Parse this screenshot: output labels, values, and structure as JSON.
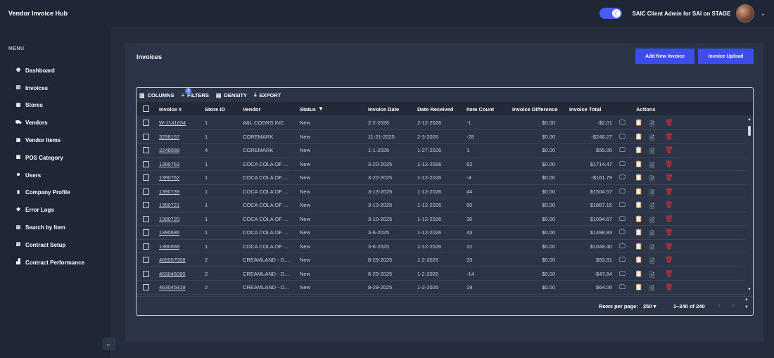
{
  "app": {
    "title": "Vendor Invoice Hub"
  },
  "user": {
    "label": "SAIC Client Admin for SAI on STAGE"
  },
  "sidebar": {
    "menu_label": "MENU",
    "items": [
      {
        "label": "Dashboard",
        "icon": "dashboard-icon"
      },
      {
        "label": "Invoices",
        "icon": "invoices-icon"
      },
      {
        "label": "Stores",
        "icon": "stores-icon"
      },
      {
        "label": "Vendors",
        "icon": "vendors-icon"
      },
      {
        "label": "Vendor Items",
        "icon": "vendor-items-icon"
      },
      {
        "label": "POS Category",
        "icon": "pos-category-icon"
      },
      {
        "label": "Users",
        "icon": "users-icon"
      },
      {
        "label": "Company Profile",
        "icon": "company-profile-icon"
      },
      {
        "label": "Error Logs",
        "icon": "error-logs-icon"
      },
      {
        "label": "Search by Item",
        "icon": "search-by-item-icon"
      },
      {
        "label": "Contract Setup",
        "icon": "contract-setup-icon"
      },
      {
        "label": "Contract Performance",
        "icon": "contract-performance-icon"
      }
    ]
  },
  "page": {
    "title": "Invoices",
    "add_button": "Add New Invoice",
    "upload_button": "Invoice Upload"
  },
  "toolbar": {
    "columns": "COLUMNS",
    "filters": "FILTERS",
    "filters_badge": "1",
    "density": "DENSITY",
    "export": "EXPORT"
  },
  "table": {
    "headers": {
      "invoice": "Invoice #",
      "store": "Store ID",
      "vendor": "Vendor",
      "status": "Status",
      "invoice_date": "Invoice Date",
      "date_received": "Date Received",
      "item_count": "Item Count",
      "invoice_difference": "Invoice Difference",
      "invoice_total": "Invoice Total",
      "actions": "Actions"
    },
    "rows": [
      {
        "invoice": "W-1141034",
        "store": "1",
        "vendor": "A&L COORS INC",
        "status": "New",
        "invoice_date": "2-2-2026",
        "date_received": "2-12-2026",
        "item_count": "-1",
        "diff": "$0.00",
        "total": "-$2.01"
      },
      {
        "invoice": "3258157",
        "store": "1",
        "vendor": "COREMARK",
        "status": "New",
        "invoice_date": "11-21-2025",
        "date_received": "2-3-2026",
        "item_count": "-28",
        "diff": "$0.00",
        "total": "-$248.27"
      },
      {
        "invoice": "3248088",
        "store": "4",
        "vendor": "COREMARK",
        "status": "New",
        "invoice_date": "1-1-2026",
        "date_received": "1-27-2026",
        "item_count": "1",
        "diff": "$0.00",
        "total": "$55.00"
      },
      {
        "invoice": "1390763",
        "store": "1",
        "vendor": "COCA COLA OF ...",
        "status": "New",
        "invoice_date": "3-20-2025",
        "date_received": "1-12-2026",
        "item_count": "62",
        "diff": "$0.00",
        "total": "$1714.47"
      },
      {
        "invoice": "1390762",
        "store": "1",
        "vendor": "COCA COLA OF ...",
        "status": "New",
        "invoice_date": "3-20-2025",
        "date_received": "1-12-2026",
        "item_count": "-4",
        "diff": "$0.00",
        "total": "-$161.79"
      },
      {
        "invoice": "1390739",
        "store": "1",
        "vendor": "COCA COLA OF ...",
        "status": "New",
        "invoice_date": "3-13-2025",
        "date_received": "1-12-2026",
        "item_count": "44",
        "diff": "$0.00",
        "total": "$1504.57"
      },
      {
        "invoice": "1390721",
        "store": "1",
        "vendor": "COCA COLA OF ...",
        "status": "New",
        "invoice_date": "3-13-2025",
        "date_received": "1-12-2026",
        "item_count": "60",
        "diff": "$0.00",
        "total": "$1887.15"
      },
      {
        "invoice": "1390720",
        "store": "1",
        "vendor": "COCA COLA OF ...",
        "status": "New",
        "invoice_date": "3-10-2025",
        "date_received": "1-12-2026",
        "item_count": "30",
        "diff": "$0.00",
        "total": "$1094.67"
      },
      {
        "invoice": "1390686",
        "store": "1",
        "vendor": "COCA COLA OF ...",
        "status": "New",
        "invoice_date": "3-6-2025",
        "date_received": "1-12-2026",
        "item_count": "43",
        "diff": "$0.00",
        "total": "$1498.83"
      },
      {
        "invoice": "1390688",
        "store": "1",
        "vendor": "COCA COLA OF ...",
        "status": "New",
        "invoice_date": "3-6-2025",
        "date_received": "1-12-2026",
        "item_count": "31",
        "diff": "$0.00",
        "total": "$1048.40"
      },
      {
        "invoice": "465057008",
        "store": "2",
        "vendor": "CREAMLAND - D...",
        "status": "New",
        "invoice_date": "8-29-2025",
        "date_received": "1-2-2026",
        "item_count": "33",
        "diff": "$0.00",
        "total": "$63.91"
      },
      {
        "invoice": "463046060",
        "store": "2",
        "vendor": "CREAMLAND - D...",
        "status": "New",
        "invoice_date": "8-29-2025",
        "date_received": "1-2-2026",
        "item_count": "-14",
        "diff": "$0.00",
        "total": "-$47.84"
      },
      {
        "invoice": "463045919",
        "store": "2",
        "vendor": "CREAMLAND - D...",
        "status": "New",
        "invoice_date": "8-29-2025",
        "date_received": "1-2-2026",
        "item_count": "19",
        "diff": "$0.00",
        "total": "$64.06"
      }
    ]
  },
  "footer": {
    "rows_per_page_label": "Rows per page:",
    "rows_per_page_value": "250",
    "range": "1–240 of 240"
  },
  "colors": {
    "accent": "#3c4ee8",
    "danger": "#e0313a",
    "background": "#252d3d",
    "panel": "#2c3547",
    "sidebar": "#1f2737"
  }
}
